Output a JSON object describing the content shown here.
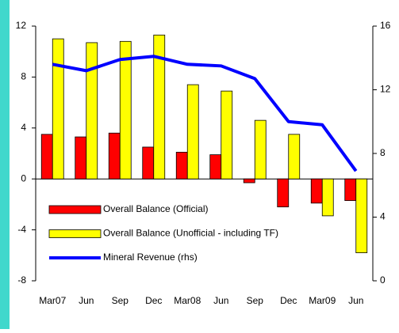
{
  "chart_data": {
    "type": "bar-line",
    "categories": [
      "Mar07",
      "Jun",
      "Sep",
      "Dec",
      "Mar08",
      "Jun",
      "Sep",
      "Dec",
      "Mar09",
      "Jun"
    ],
    "series": [
      {
        "name": "Overall Balance (Official)",
        "type": "bar",
        "color": "#ff0000",
        "values": [
          3.5,
          3.3,
          3.6,
          2.5,
          2.1,
          1.9,
          -0.3,
          -2.2,
          -1.9,
          -1.7
        ]
      },
      {
        "name": "Overall Balance (Unofficial - including TF)",
        "type": "bar",
        "color": "#ffff00",
        "values": [
          11.0,
          10.7,
          10.8,
          11.3,
          7.4,
          6.9,
          4.6,
          3.5,
          -2.9,
          -5.8
        ]
      },
      {
        "name": "Mineral Revenue (rhs)",
        "type": "line",
        "color": "#0000ff",
        "axis": "y2",
        "values": [
          13.6,
          13.2,
          13.9,
          14.1,
          13.6,
          13.5,
          12.7,
          10.0,
          9.8,
          6.9
        ]
      }
    ],
    "ylim": [
      -8,
      12
    ],
    "yticks": [
      -8,
      -4,
      0,
      4,
      8,
      12
    ],
    "y2lim": [
      0,
      16
    ],
    "y2ticks": [
      0,
      4,
      8,
      12,
      16
    ],
    "legend": "lower left",
    "grid": false
  }
}
